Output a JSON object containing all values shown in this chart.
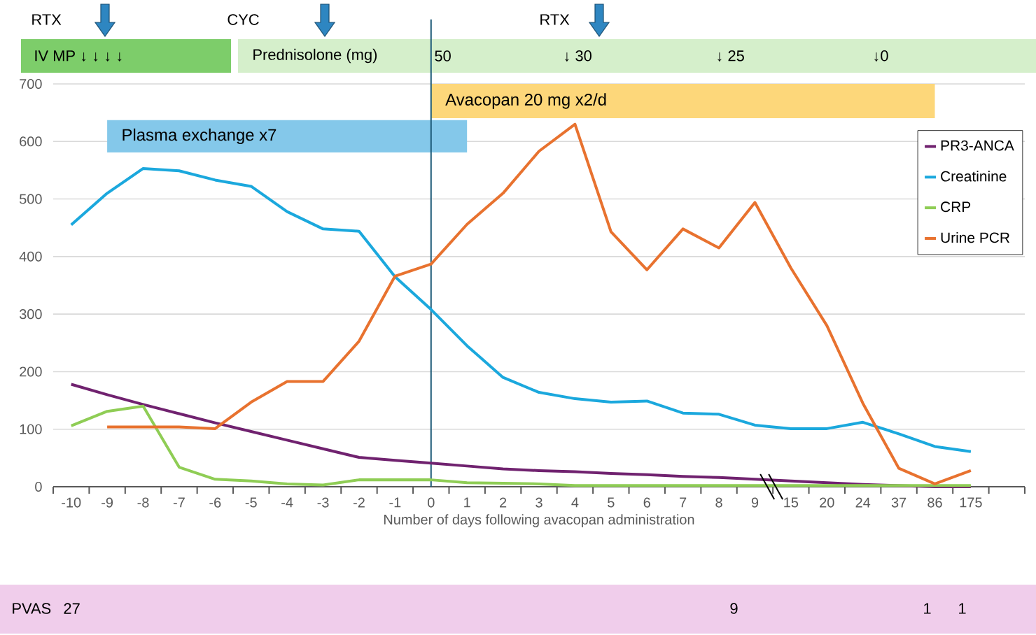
{
  "chart_data": {
    "type": "line",
    "xlabel": "Number of days following avacopan administration",
    "categories": [
      "-10",
      "-9",
      "-8",
      "-7",
      "-6",
      "-5",
      "-4",
      "-3",
      "-2",
      "-1",
      "0",
      "1",
      "2",
      "3",
      "4",
      "5",
      "6",
      "7",
      "8",
      "9",
      "15",
      "20",
      "24",
      "37",
      "86",
      "175"
    ],
    "ylim": [
      0,
      700
    ],
    "yticks": [
      0,
      100,
      200,
      300,
      400,
      500,
      600,
      700
    ],
    "grid": "y",
    "legend": "top right",
    "series": [
      {
        "name": "PR3-ANCA",
        "color": "#70226f",
        "values": [
          178,
          160,
          143,
          127,
          111,
          96,
          81,
          66,
          51,
          46,
          41,
          36,
          31,
          28,
          26,
          23,
          21,
          18,
          16,
          13,
          10,
          7,
          4,
          2,
          0,
          0
        ]
      },
      {
        "name": "Creatinine",
        "color": "#1ba8dd",
        "values": [
          455,
          510,
          553,
          549,
          533,
          522,
          478,
          448,
          444,
          365,
          308,
          245,
          190,
          164,
          153,
          147,
          149,
          128,
          126,
          107,
          101,
          101,
          112,
          92,
          70,
          61
        ]
      },
      {
        "name": "CRP",
        "color": "#8fcd55",
        "values": [
          106,
          131,
          140,
          34,
          13,
          10,
          5,
          3,
          12,
          12,
          12,
          7,
          6,
          5,
          2,
          2,
          2,
          2,
          2,
          2,
          2,
          2,
          2,
          2,
          2,
          2
        ]
      },
      {
        "name": "Urine PCR",
        "color": "#e8722f",
        "values": [
          null,
          104,
          104,
          104,
          101,
          147,
          183,
          183,
          253,
          366,
          387,
          456,
          510,
          583,
          630,
          443,
          377,
          448,
          415,
          494,
          380,
          280,
          145,
          32,
          5,
          28
        ]
      }
    ],
    "ref_lines": [
      {
        "axis": "x",
        "value": "0",
        "color": "#1d5a78"
      }
    ],
    "bands": [
      {
        "axis": "x",
        "from": "0",
        "to": "86",
        "label": "Avacopan 20 mg x2/d",
        "color": "#fdd77a"
      },
      {
        "axis": "x",
        "from": "-9",
        "to": "1",
        "label": "Plasma exchange x7",
        "color": "#84c8ea"
      }
    ],
    "annotations": [
      "RTX",
      "CYC",
      "RTX",
      "IV MP ↓ ↓ ↓ ↓",
      "Prednisolone (mg)",
      "50",
      "↓ 30",
      "↓ 25",
      "↓0",
      "PVAS",
      "27",
      "9",
      "1",
      "1"
    ]
  }
}
